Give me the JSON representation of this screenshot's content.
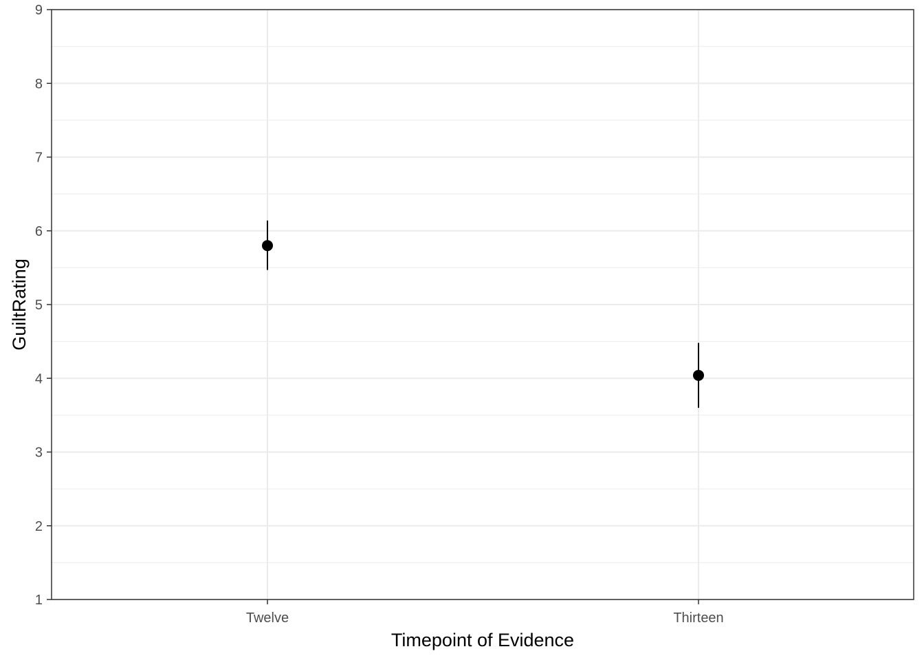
{
  "chart_data": {
    "type": "scatter",
    "title": "",
    "xlabel": "Timepoint of Evidence",
    "ylabel": "GuiltRating",
    "categories": [
      "Twelve",
      "Thirteen"
    ],
    "series": [
      {
        "name": "GuiltRating",
        "values": [
          5.8,
          4.04
        ],
        "error_low": [
          5.47,
          3.6
        ],
        "error_high": [
          6.14,
          4.48
        ]
      }
    ],
    "ylim": [
      1,
      9
    ],
    "yticks": [
      1,
      2,
      3,
      4,
      5,
      6,
      7,
      8,
      9
    ],
    "ytick_labels": [
      "1",
      "2",
      "3",
      "4",
      "5",
      "6",
      "7",
      "8",
      "9"
    ],
    "grid": true,
    "legend": "none",
    "colors": {
      "point": "#000000",
      "grid": "#ebebeb",
      "panel_border": "#333333",
      "tick_text": "#4d4d4d"
    }
  }
}
